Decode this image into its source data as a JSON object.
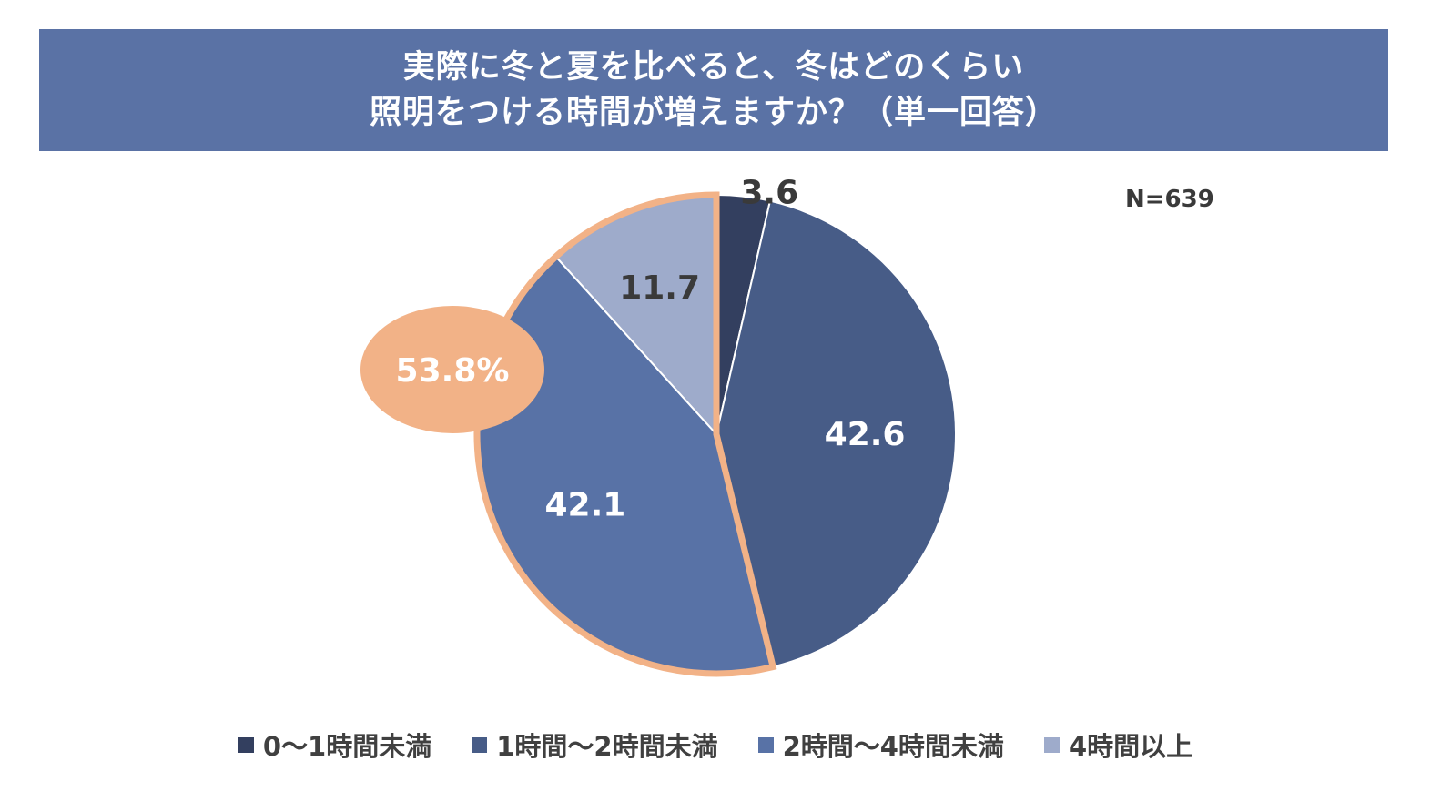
{
  "chart_data": {
    "type": "pie",
    "title_lines": [
      "実際に冬と夏を比べると、冬はどのくらい",
      "照明をつける時間が増えますか？（単一回答）"
    ],
    "sample_size": "N=639",
    "categories": [
      "0〜1時間未満",
      "1時間〜2時間未満",
      "2時間〜4時間未満",
      "4時間以上"
    ],
    "values": [
      3.6,
      42.6,
      42.1,
      11.7
    ],
    "value_labels": [
      "3.6",
      "42.6",
      "42.1",
      "11.7"
    ],
    "colors": [
      "#333f5f",
      "#475c87",
      "#5872a6",
      "#9eabcb"
    ],
    "label_colors": [
      "#3a3a3a",
      "#ffffff",
      "#ffffff",
      "#3a3a3a"
    ],
    "start_angle_deg": 0,
    "direction": "clockwise",
    "highlight": {
      "label": "53.8%",
      "categories": [
        "2時間〜4時間未満",
        "4時間以上"
      ],
      "color": "#f2b287"
    },
    "legend_position": "bottom"
  }
}
